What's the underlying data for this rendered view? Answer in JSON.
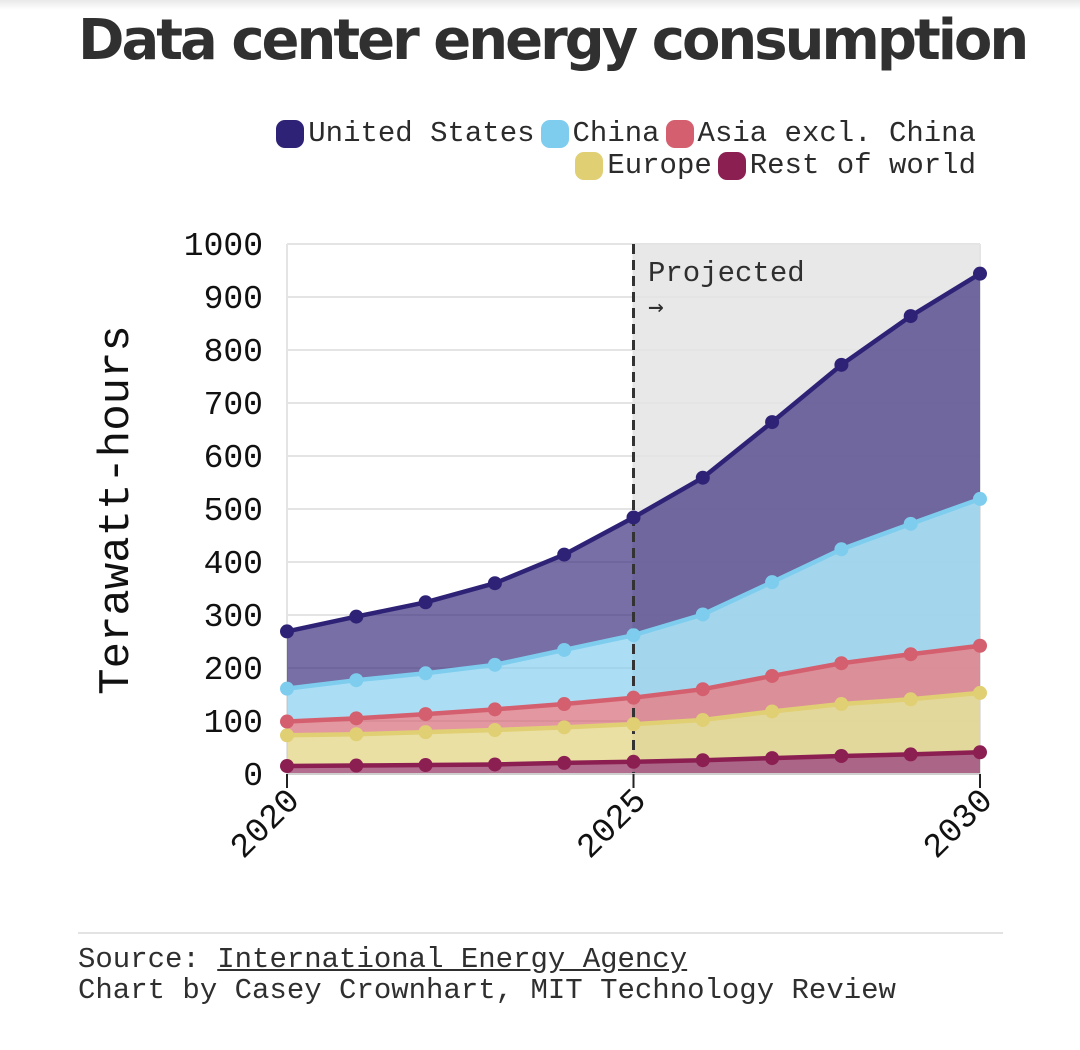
{
  "title": "Data center energy consumption",
  "source_prefix": "Source: ",
  "source_link": "International Energy Agency",
  "credit": "Chart by Casey Crownhart, MIT Technology Review",
  "chart_data": {
    "type": "area",
    "stacked": true,
    "title": "Data center energy consumption",
    "ylabel": "Terawatt-hours",
    "xlabel": "",
    "x": [
      2020,
      2021,
      2022,
      2023,
      2024,
      2025,
      2026,
      2027,
      2028,
      2029,
      2030
    ],
    "xticks": [
      "2020",
      "2025",
      "2030"
    ],
    "ylim": [
      0,
      1000
    ],
    "yticks": [
      "0",
      "100",
      "200",
      "300",
      "400",
      "500",
      "600",
      "700",
      "800",
      "900",
      "1000"
    ],
    "annotation": {
      "text": "Projected",
      "arrow": "→",
      "from_x": 2025
    },
    "legend_position": "top-right",
    "grid": true,
    "series": [
      {
        "name": "Rest of world",
        "color": "#8b1f52",
        "values": [
          15,
          16,
          17,
          18,
          21,
          23,
          26,
          30,
          34,
          37,
          41
        ]
      },
      {
        "name": "Europe",
        "color": "#e0cf73",
        "values": [
          58,
          59,
          62,
          65,
          67,
          71,
          76,
          88,
          98,
          104,
          112
        ]
      },
      {
        "name": "Asia excl. China",
        "color": "#d45f6e",
        "values": [
          26,
          30,
          34,
          39,
          44,
          50,
          58,
          67,
          77,
          85,
          89
        ]
      },
      {
        "name": "China",
        "color": "#7ecdee",
        "values": [
          62,
          72,
          77,
          84,
          102,
          118,
          141,
          177,
          215,
          246,
          277
        ]
      },
      {
        "name": "United States",
        "color": "#2e2276",
        "values": [
          108,
          120,
          134,
          154,
          180,
          222,
          258,
          302,
          348,
          392,
          425
        ]
      }
    ]
  }
}
